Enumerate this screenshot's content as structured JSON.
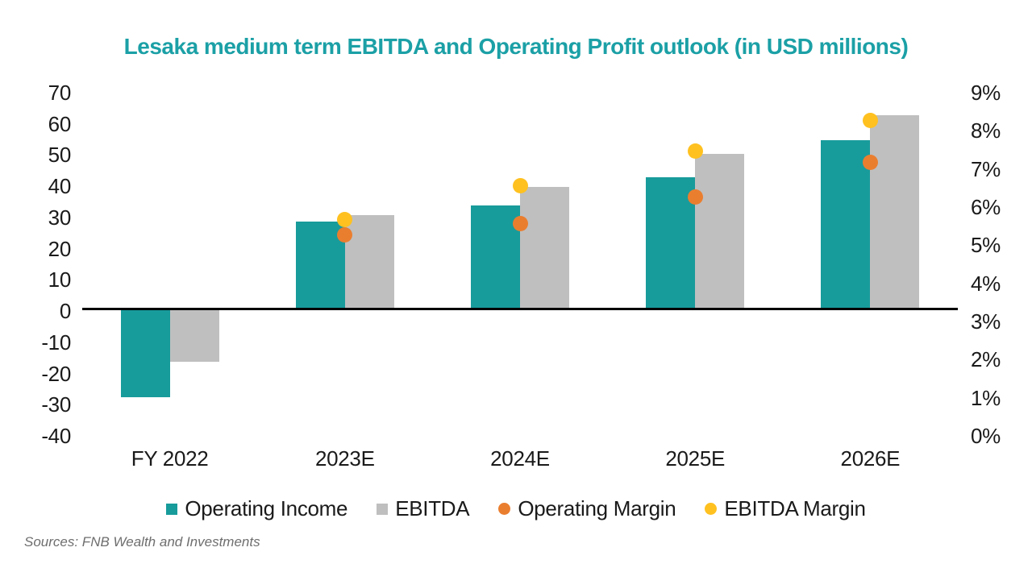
{
  "source_note": "Sources: FNB Wealth and Investments",
  "colors": {
    "title": "#1BA0A6",
    "operating_income": "#189B9B",
    "ebitda": "#BFBFBF",
    "operating_margin": "#EA7E2F",
    "ebitda_margin": "#FFC120",
    "axis_line": "#000000",
    "label_text": "#1a1a1a",
    "source_text": "#6e6e6e"
  },
  "chart_data": {
    "type": "bar",
    "title": "Lesaka medium term EBITDA and Operating Profit outlook (in USD millions)",
    "categories": [
      "FY 2022",
      "2023E",
      "2024E",
      "2025E",
      "2026E"
    ],
    "series": [
      {
        "name": "Operating Income",
        "kind": "bar",
        "axis": "left",
        "color": "#189B9B",
        "values": [
          -28.5,
          28,
          33,
          42,
          54
        ]
      },
      {
        "name": "EBITDA",
        "kind": "bar",
        "axis": "left",
        "color": "#BFBFBF",
        "values": [
          -17,
          30,
          39,
          49.5,
          62
        ]
      },
      {
        "name": "EBITDA Margin",
        "kind": "point",
        "axis": "right",
        "color": "#FFC120",
        "values": [
          null,
          5.6,
          6.5,
          7.4,
          8.2
        ]
      },
      {
        "name": "Operating Margin",
        "kind": "point",
        "axis": "right",
        "color": "#EA7E2F",
        "values": [
          null,
          5.2,
          5.5,
          6.2,
          7.1
        ]
      }
    ],
    "legend_order": [
      "Operating Income",
      "EBITDA",
      "Operating Margin",
      "EBITDA Margin"
    ],
    "left_axis": {
      "min": -40,
      "max": 70,
      "ticks": [
        70,
        60,
        50,
        40,
        30,
        20,
        10,
        0,
        -10,
        -20,
        -30,
        -40
      ]
    },
    "right_axis": {
      "min": 0,
      "max": 9,
      "ticks": [
        "9%",
        "8%",
        "7%",
        "6%",
        "5%",
        "4%",
        "3%",
        "2%",
        "1%",
        "0%"
      ]
    },
    "grid": false,
    "legend_position": "bottom",
    "zero_baseline": true
  }
}
